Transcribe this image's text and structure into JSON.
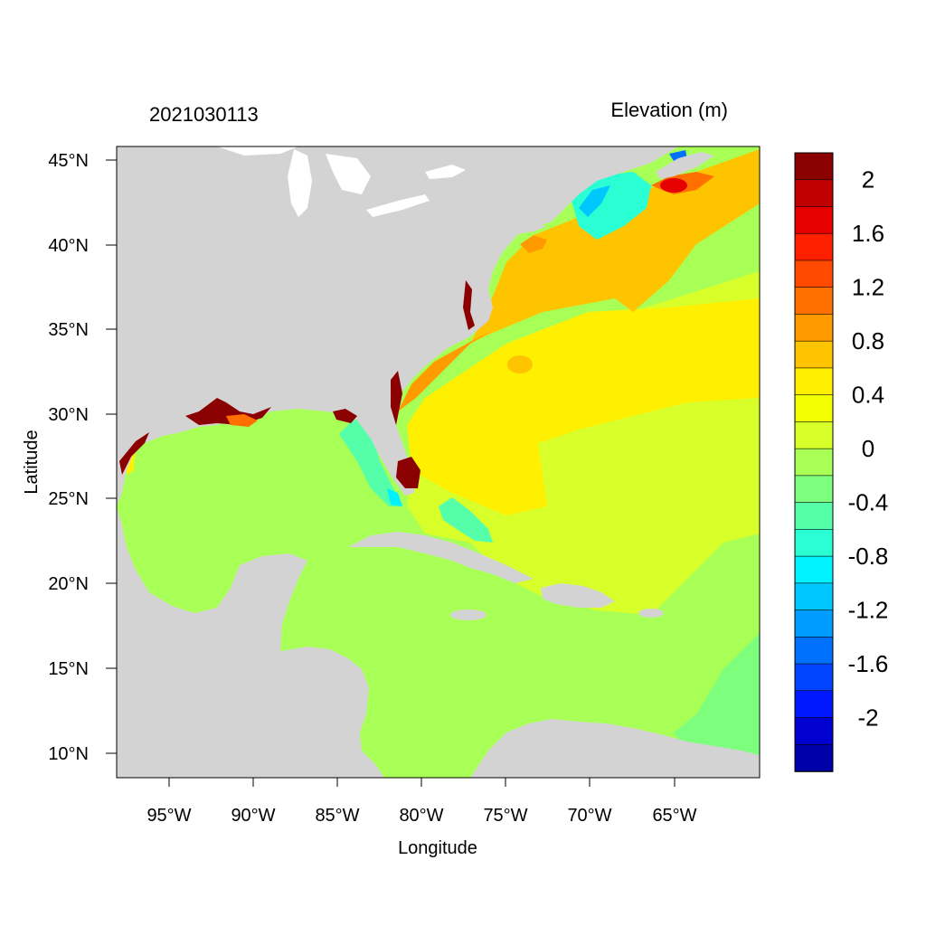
{
  "chart_data": {
    "type": "heatmap",
    "title_left": "2021030113",
    "title_right": "Elevation (m)",
    "xlabel": "Longitude",
    "ylabel": "Latitude",
    "x_ticks": [
      "95°W",
      "90°W",
      "85°W",
      "80°W",
      "75°W",
      "70°W",
      "65°W"
    ],
    "y_ticks": [
      "45°N",
      "40°N",
      "35°N",
      "30°N",
      "25°N",
      "20°N",
      "15°N",
      "10°N"
    ],
    "colorbar": {
      "labels": [
        "2",
        "1.6",
        "1.2",
        "0.8",
        "0.4",
        "0",
        "-0.4",
        "-0.8",
        "-1.2",
        "-1.6",
        "-2"
      ],
      "colors": [
        "#8b0000",
        "#c00000",
        "#e60000",
        "#ff2000",
        "#ff4a00",
        "#ff7000",
        "#ff9a00",
        "#ffc400",
        "#ffef00",
        "#f2ff00",
        "#d8ff2a",
        "#a8ff55",
        "#7dff7d",
        "#55ffaa",
        "#2affd4",
        "#00f2ff",
        "#00c8ff",
        "#009cff",
        "#0070ff",
        "#0044ff",
        "#0018ff",
        "#0000d0",
        "#0000a8"
      ]
    },
    "land_color": "#d3d3d3"
  }
}
